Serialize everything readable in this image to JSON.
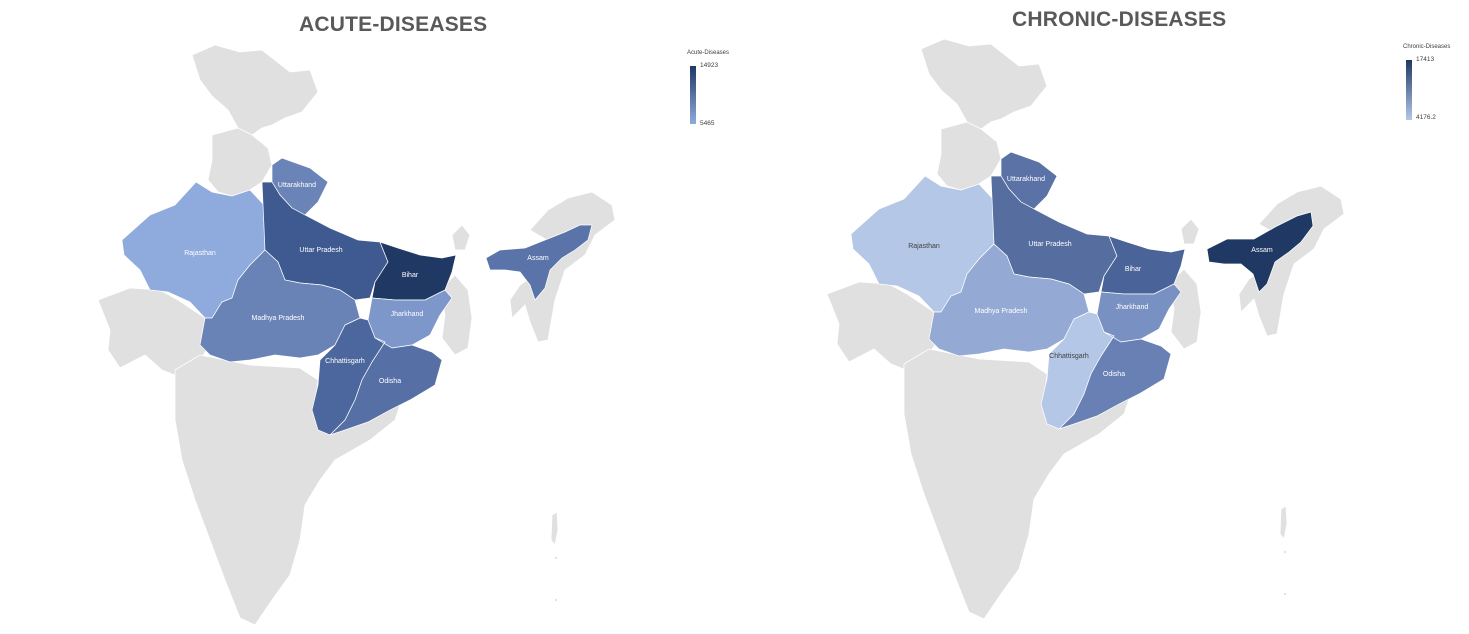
{
  "maps": [
    {
      "title": "ACUTE-DISEASES",
      "legend": {
        "title": "Acute-Diseases",
        "max": "14923",
        "min": "5465"
      },
      "states": {
        "uttarakhand": {
          "label": "Uttarakhand",
          "color": "#6b84b8"
        },
        "uttar_pradesh": {
          "label": "Uttar Pradesh",
          "color": "#3f5a90"
        },
        "bihar": {
          "label": "Bihar",
          "color": "#1f3864"
        },
        "rajasthan": {
          "label": "Rajasthan",
          "color": "#8faadc"
        },
        "madhya_pradesh": {
          "label": "Madhya Pradesh",
          "color": "#6a83b7"
        },
        "jharkhand": {
          "label": "Jharkhand",
          "color": "#7d97cb"
        },
        "chhattisgarh": {
          "label": "Chhattisgarh",
          "color": "#4c679d"
        },
        "odisha": {
          "label": "Odisha",
          "color": "#5670a6"
        },
        "assam": {
          "label": "Assam",
          "color": "#5a74aa"
        }
      }
    },
    {
      "title": "CHRONIC-DISEASES",
      "legend": {
        "title": "Chronic-Diseases",
        "max": "17413",
        "min": "4176.2"
      },
      "states": {
        "uttarakhand": {
          "label": "Uttarakhand",
          "color": "#5a72a6"
        },
        "uttar_pradesh": {
          "label": "Uttar Pradesh",
          "color": "#566e9f"
        },
        "bihar": {
          "label": "Bihar",
          "color": "#4a6398"
        },
        "rajasthan": {
          "label": "Rajasthan",
          "color": "#b4c7e7"
        },
        "madhya_pradesh": {
          "label": "Madhya Pradesh",
          "color": "#94aad4"
        },
        "jharkhand": {
          "label": "Jharkhand",
          "color": "#7890c2"
        },
        "chhattisgarh": {
          "label": "Chhattisgarh",
          "color": "#b4c7e7"
        },
        "odisha": {
          "label": "Odisha",
          "color": "#6880b4"
        },
        "assam": {
          "label": "Assam",
          "color": "#1f3864"
        }
      }
    }
  ]
}
